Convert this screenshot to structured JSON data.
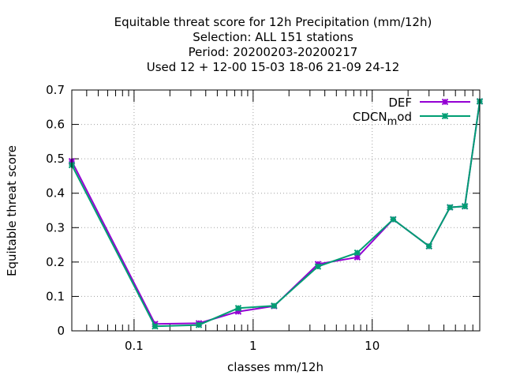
{
  "chart_data": {
    "type": "line",
    "title_lines": [
      "Equitable threat score  for 12h Precipitation (mm/12h)",
      "Selection: ALL    151 stations",
      "Period: 20200203-20200217",
      "Used  12 + 12-00 15-03 18-06 21-09 24-12"
    ],
    "xlabel": "classes mm/12h",
    "ylabel": "Equitable threat score",
    "xscale": "log",
    "xlim": [
      0.03,
      80
    ],
    "ylim": [
      0,
      0.7
    ],
    "yticks": [
      "0",
      "0.1",
      "0.2",
      "0.3",
      "0.4",
      "0.5",
      "0.6",
      "0.7"
    ],
    "xticks": [
      "0.1",
      "1",
      "10"
    ],
    "grid": true,
    "legend_position": "top-right",
    "series": [
      {
        "name": "DEF",
        "color": "#9400d3",
        "x": [
          0.03,
          0.15,
          0.35,
          0.75,
          1.5,
          3.5,
          7.5,
          15,
          30,
          45,
          60,
          80
        ],
        "y": [
          0.493,
          0.02,
          0.022,
          0.056,
          0.072,
          0.194,
          0.214,
          0.324,
          0.246,
          0.359,
          0.362,
          0.667
        ]
      },
      {
        "name": "CDCN_mod",
        "color": "#009e73",
        "x": [
          0.03,
          0.15,
          0.35,
          0.75,
          1.5,
          3.5,
          7.5,
          15,
          30,
          45,
          60,
          80
        ],
        "y": [
          0.482,
          0.013,
          0.017,
          0.066,
          0.073,
          0.187,
          0.227,
          0.324,
          0.246,
          0.359,
          0.362,
          0.667
        ]
      }
    ],
    "legend": [
      {
        "label_main": "DEF",
        "label_sub": ""
      },
      {
        "label_main": "CDCN",
        "label_sub": "m",
        "label_after": "od"
      }
    ]
  }
}
